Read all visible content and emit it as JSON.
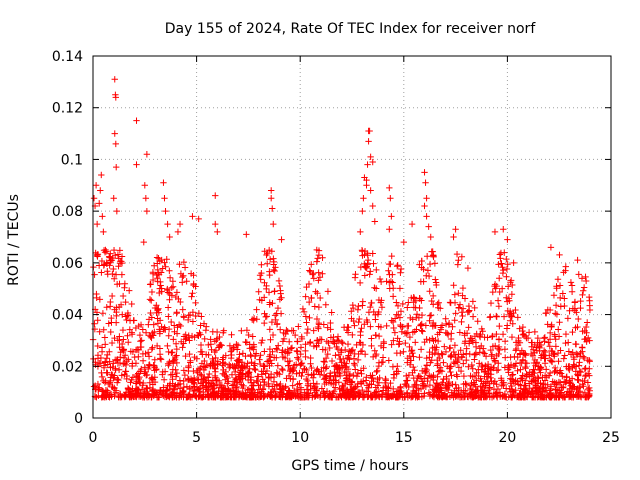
{
  "chart_data": {
    "type": "scatter",
    "title": "Day 155 of 2024, Rate Of TEC Index for receiver norf",
    "xlabel": "GPS time / hours",
    "ylabel": "ROTI / TECUs",
    "xlim": [
      0,
      25
    ],
    "ylim": [
      0,
      0.14
    ],
    "xticks": [
      0,
      5,
      10,
      15,
      20,
      25
    ],
    "yticks": [
      0,
      0.02,
      0.04,
      0.06,
      0.08,
      0.1,
      0.12,
      0.14
    ],
    "xtick_labels": [
      "0",
      "5",
      "10",
      "15",
      "20",
      "25"
    ],
    "ytick_labels": [
      "0",
      "0.02",
      "0.04",
      "0.06",
      "0.08",
      "0.1",
      "0.12",
      "0.14"
    ],
    "grid": true,
    "marker": "plus",
    "color": "#ff0000",
    "series": [
      {
        "name": "ROTI",
        "points": [
          [
            0.05,
            0.085
          ],
          [
            0.1,
            0.082
          ],
          [
            0.15,
            0.09
          ],
          [
            0.2,
            0.075
          ],
          [
            0.3,
            0.083
          ],
          [
            0.35,
            0.088
          ],
          [
            0.4,
            0.094
          ],
          [
            0.45,
            0.078
          ],
          [
            0.5,
            0.072
          ],
          [
            0.6,
            0.065
          ],
          [
            0.8,
            0.062
          ],
          [
            1.05,
            0.131
          ],
          [
            1.08,
            0.125
          ],
          [
            1.1,
            0.124
          ],
          [
            1.05,
            0.11
          ],
          [
            1.1,
            0.106
          ],
          [
            1.12,
            0.097
          ],
          [
            1.0,
            0.085
          ],
          [
            1.15,
            0.08
          ],
          [
            2.1,
            0.115
          ],
          [
            2.1,
            0.098
          ],
          [
            2.6,
            0.102
          ],
          [
            2.5,
            0.09
          ],
          [
            2.55,
            0.085
          ],
          [
            2.6,
            0.08
          ],
          [
            2.45,
            0.068
          ],
          [
            3.4,
            0.091
          ],
          [
            3.45,
            0.085
          ],
          [
            3.5,
            0.08
          ],
          [
            3.6,
            0.075
          ],
          [
            3.7,
            0.07
          ],
          [
            4.1,
            0.072
          ],
          [
            4.2,
            0.075
          ],
          [
            4.8,
            0.078
          ],
          [
            5.1,
            0.077
          ],
          [
            5.9,
            0.086
          ],
          [
            5.9,
            0.075
          ],
          [
            6.0,
            0.072
          ],
          [
            7.4,
            0.071
          ],
          [
            8.6,
            0.088
          ],
          [
            8.6,
            0.085
          ],
          [
            8.65,
            0.081
          ],
          [
            8.7,
            0.075
          ],
          [
            9.1,
            0.069
          ],
          [
            10.8,
            0.065
          ],
          [
            10.9,
            0.063
          ],
          [
            12.9,
            0.072
          ],
          [
            13.0,
            0.08
          ],
          [
            13.05,
            0.085
          ],
          [
            13.1,
            0.093
          ],
          [
            13.2,
            0.092
          ],
          [
            13.25,
            0.098
          ],
          [
            13.3,
            0.111
          ],
          [
            13.35,
            0.111
          ],
          [
            13.3,
            0.107
          ],
          [
            13.4,
            0.101
          ],
          [
            13.5,
            0.099
          ],
          [
            13.2,
            0.09
          ],
          [
            13.4,
            0.088
          ],
          [
            13.5,
            0.082
          ],
          [
            13.6,
            0.076
          ],
          [
            14.3,
            0.089
          ],
          [
            14.35,
            0.085
          ],
          [
            14.4,
            0.078
          ],
          [
            14.3,
            0.073
          ],
          [
            15.0,
            0.068
          ],
          [
            15.4,
            0.075
          ],
          [
            16.0,
            0.095
          ],
          [
            16.05,
            0.091
          ],
          [
            16.1,
            0.085
          ],
          [
            16.0,
            0.082
          ],
          [
            16.1,
            0.078
          ],
          [
            16.2,
            0.074
          ],
          [
            16.3,
            0.07
          ],
          [
            17.4,
            0.07
          ],
          [
            17.5,
            0.073
          ],
          [
            19.4,
            0.072
          ],
          [
            19.8,
            0.073
          ],
          [
            20.0,
            0.069
          ],
          [
            20.3,
            0.06
          ],
          [
            22.1,
            0.066
          ],
          [
            22.8,
            0.057
          ],
          [
            23.6,
            0.054
          ],
          [
            23.8,
            0.053
          ]
        ]
      }
    ]
  }
}
